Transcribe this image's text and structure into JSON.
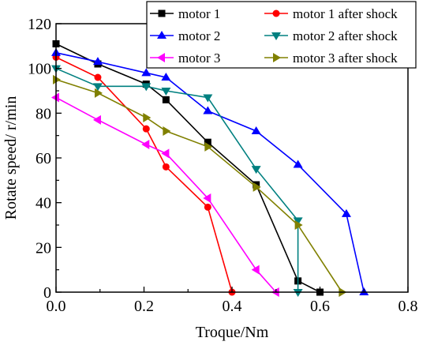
{
  "chart_data": {
    "type": "line",
    "xlabel": "Troque/Nm",
    "ylabel": "Rotate speed/ r/min",
    "xlim": [
      0.0,
      0.8
    ],
    "ylim": [
      0,
      120
    ],
    "x_ticks": [
      "0.0",
      "0.2",
      "0.4",
      "0.6",
      "0.8"
    ],
    "y_ticks": [
      "0",
      "20",
      "40",
      "60",
      "80",
      "100",
      "120"
    ],
    "x_tick_values": [
      0.0,
      0.2,
      0.4,
      0.6,
      0.8
    ],
    "y_tick_values": [
      0,
      20,
      40,
      60,
      80,
      100,
      120
    ],
    "grid": false,
    "legend_position": "top-right",
    "series": [
      {
        "name": "motor 1",
        "color": "#000000",
        "marker": "square",
        "x": [
          0.0,
          0.095,
          0.205,
          0.25,
          0.345,
          0.455,
          0.55,
          0.6
        ],
        "y": [
          111,
          102,
          93,
          86,
          67,
          48,
          5,
          0
        ]
      },
      {
        "name": "motor 1 after shock",
        "color": "#ff0000",
        "marker": "circle",
        "x": [
          0.0,
          0.095,
          0.205,
          0.25,
          0.345,
          0.4
        ],
        "y": [
          105,
          96,
          73,
          56,
          38,
          0
        ]
      },
      {
        "name": "motor 2",
        "color": "#0000ff",
        "marker": "triangle-up",
        "x": [
          0.0,
          0.095,
          0.205,
          0.25,
          0.345,
          0.455,
          0.55,
          0.66,
          0.7
        ],
        "y": [
          107,
          103,
          98,
          96,
          81,
          72,
          57,
          35,
          0
        ]
      },
      {
        "name": "motor 2 after shock",
        "color": "#008080",
        "marker": "triangle-down",
        "x": [
          0.0,
          0.095,
          0.205,
          0.25,
          0.345,
          0.455,
          0.55,
          0.55
        ],
        "y": [
          100,
          92,
          92,
          90,
          87,
          55,
          32,
          0
        ]
      },
      {
        "name": "motor 3",
        "color": "#ff00ff",
        "marker": "triangle-left",
        "x": [
          0.0,
          0.095,
          0.205,
          0.25,
          0.345,
          0.455,
          0.5
        ],
        "y": [
          87,
          77,
          66,
          62,
          42,
          10,
          0
        ]
      },
      {
        "name": "motor 3 after shock",
        "color": "#808000",
        "marker": "triangle-right",
        "x": [
          0.0,
          0.095,
          0.205,
          0.25,
          0.345,
          0.455,
          0.55,
          0.65
        ],
        "y": [
          95,
          89,
          78,
          72,
          65,
          47,
          30,
          0
        ]
      }
    ]
  }
}
